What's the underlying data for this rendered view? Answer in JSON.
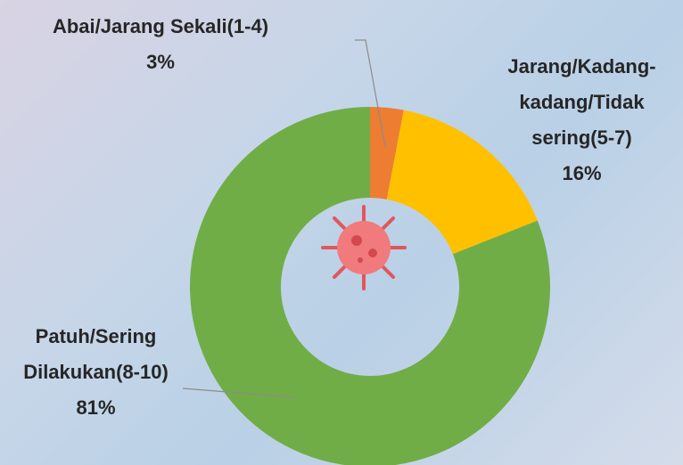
{
  "chart_data": {
    "type": "donut",
    "categories": [
      "Abai/Jarang Sekali(1-4)",
      "Jarang/Kadang-kadang/Tidak sering(5-7)",
      "Patuh/Sering Dilakukan(8-10)"
    ],
    "values": [
      3,
      16,
      81
    ],
    "value_labels": [
      "3%",
      "16%",
      "81%"
    ],
    "colors": [
      "#ED7D31",
      "#FFC000",
      "#70AD47"
    ]
  }
}
